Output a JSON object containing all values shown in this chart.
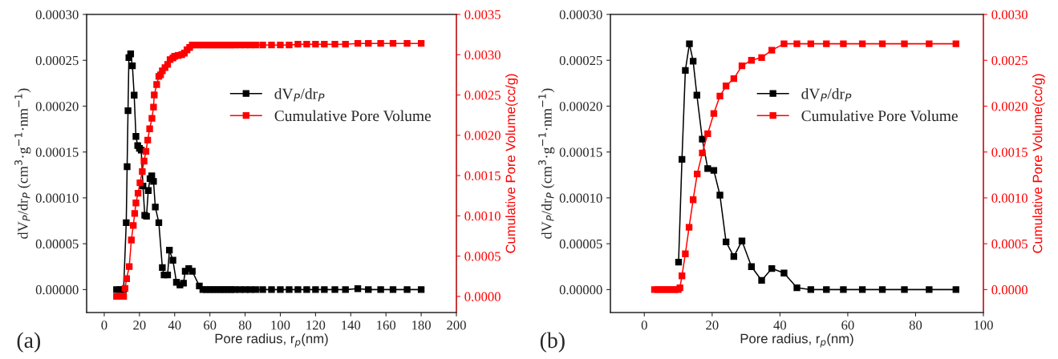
{
  "chart_data": [
    {
      "type": "line",
      "xlabel": "Pore radius, r$_{p}$(nm)",
      "ylabel": "dV$_{P}$/dr$_{P}$ (cm$^{3}$·g$^{−1}$·nm$^{−1}$)",
      "y2label": "Cumulative Pore Volume(cc/g)",
      "annotations": [
        "(a)"
      ],
      "marker": "square",
      "legend": "top right",
      "grid": false,
      "xlim": [
        -10,
        200
      ],
      "xticks": [
        0,
        20,
        40,
        60,
        80,
        100,
        120,
        140,
        160,
        180,
        200
      ],
      "ylim": [
        -2.5e-05,
        0.0003
      ],
      "yticks": [
        {
          "value": 0,
          "label": "0.00000"
        },
        {
          "value": 5e-05,
          "label": "0.00005"
        },
        {
          "value": 0.0001,
          "label": "0.00010"
        },
        {
          "value": 0.00015,
          "label": "0.00015"
        },
        {
          "value": 0.0002,
          "label": "0.00020"
        },
        {
          "value": 0.00025,
          "label": "0.00025"
        },
        {
          "value": 0.0003,
          "label": "0.00030"
        }
      ],
      "y2lim": [
        -0.0002,
        0.0035
      ],
      "y2ticks": [
        {
          "value": 0,
          "label": "0.0000"
        },
        {
          "value": 0.0005,
          "label": "0.0005"
        },
        {
          "value": 0.001,
          "label": "0.0010"
        },
        {
          "value": 0.0015,
          "label": "0.0015"
        },
        {
          "value": 0.002,
          "label": "0.0020"
        },
        {
          "value": 0.0025,
          "label": "0.0025"
        },
        {
          "value": 0.003,
          "label": "0.0030"
        },
        {
          "value": 0.0035,
          "label": "0.0035"
        }
      ],
      "series": [
        {
          "name": "dV$_{P}$/dr$_{P}$",
          "color": "#000000",
          "x": [
            7,
            9,
            11,
            12.5,
            13,
            13.5,
            14,
            15,
            16,
            17,
            18,
            19,
            20,
            21,
            22,
            23,
            24,
            25,
            26,
            27,
            28,
            29,
            31,
            33,
            34,
            36,
            37,
            39,
            41,
            43,
            45,
            46,
            48,
            50,
            54,
            56,
            58,
            60,
            62,
            64,
            66,
            68,
            70,
            72,
            74,
            77,
            80,
            83,
            86,
            90,
            95,
            100,
            105,
            110,
            115,
            120,
            125,
            131,
            137,
            144,
            150,
            157,
            164,
            172,
            180
          ],
          "values": [
            0,
            0,
            0,
            7.3e-05,
            0.000134,
            0.000195,
            0.000253,
            0.000257,
            0.000244,
            0.000212,
            0.000167,
            0.000157,
            0.000154,
            0.000152,
            0.000113,
            8.1e-05,
            8e-05,
            0.000108,
            0.000121,
            0.000124,
            0.000118,
            9e-05,
            7.3e-05,
            2.4e-05,
            1.6e-05,
            1.6e-05,
            4.3e-05,
            3.2e-05,
            8e-06,
            5e-06,
            7e-06,
            2e-05,
            2.3e-05,
            2e-05,
            4e-06,
            0,
            0,
            0,
            0,
            0,
            0,
            0,
            0,
            0,
            0,
            0,
            0,
            0,
            0,
            0,
            0,
            0,
            0,
            0,
            0,
            0,
            0,
            0,
            0,
            1e-06,
            0,
            0,
            0,
            0,
            0
          ]
        },
        {
          "name": "Cumulative Pore Volume",
          "color": "#ff0000",
          "axis": "y2",
          "x": [
            7,
            8,
            9,
            10,
            11,
            11.8,
            12.7,
            14.2,
            15.4,
            16.5,
            17.3,
            18,
            19.2,
            20.3,
            21.6,
            22.6,
            23.7,
            24.7,
            25.8,
            27.1,
            28,
            28.4,
            29.8,
            31,
            32,
            33,
            34.5,
            36,
            37.4,
            39,
            40,
            42,
            44,
            45.5,
            47,
            48.5,
            50,
            52,
            54,
            56,
            58,
            60,
            62,
            64,
            66,
            68,
            70,
            72,
            74,
            77,
            80,
            83,
            86,
            90,
            95,
            100,
            105,
            110,
            115,
            120,
            125,
            131,
            137,
            144,
            150,
            157,
            164,
            172,
            180
          ],
          "values": [
            0,
            0,
            0,
            0,
            0,
            0.0001,
            0.00022,
            0.00037,
            0.0007,
            0.00088,
            0.00103,
            0.00116,
            0.00128,
            0.00141,
            0.00155,
            0.00168,
            0.0018,
            0.00194,
            0.00208,
            0.00221,
            0.00235,
            0.0025,
            0.00263,
            0.00273,
            0.00275,
            0.0028,
            0.00284,
            0.00288,
            0.00294,
            0.00296,
            0.00298,
            0.00299,
            0.003,
            0.00302,
            0.00306,
            0.00309,
            0.00312,
            0.00312,
            0.00312,
            0.00312,
            0.00312,
            0.00312,
            0.00312,
            0.00312,
            0.00312,
            0.00312,
            0.00312,
            0.00312,
            0.00312,
            0.00312,
            0.00312,
            0.00312,
            0.00312,
            0.00312,
            0.00312,
            0.00312,
            0.00312,
            0.00313,
            0.00313,
            0.00313,
            0.00313,
            0.00313,
            0.00313,
            0.00314,
            0.00314,
            0.00314,
            0.00314,
            0.00314,
            0.00314
          ]
        }
      ]
    },
    {
      "type": "line",
      "xlabel": "Pore radius, r$_{p}$(nm)",
      "ylabel": "dV$_{P}$/dr$_{P}$ (cm$^{3}$·g$^{−1}$·nm$^{−1}$)",
      "y2label": "Cumulative Pore Volume(cc/g)",
      "annotations": [
        "(b)"
      ],
      "marker": "square",
      "legend": "top right",
      "grid": false,
      "xlim": [
        -10,
        100
      ],
      "xticks": [
        0,
        20,
        40,
        60,
        80,
        100
      ],
      "ylim": [
        -2.5e-05,
        0.0003
      ],
      "yticks": [
        {
          "value": 0,
          "label": "0.00000"
        },
        {
          "value": 5e-05,
          "label": "0.00005"
        },
        {
          "value": 0.0001,
          "label": "0.00010"
        },
        {
          "value": 0.00015,
          "label": "0.00015"
        },
        {
          "value": 0.0002,
          "label": "0.00020"
        },
        {
          "value": 0.00025,
          "label": "0.00025"
        },
        {
          "value": 0.0003,
          "label": "0.00030"
        }
      ],
      "y2lim": [
        -0.00025,
        0.003
      ],
      "y2ticks": [
        {
          "value": 0,
          "label": "0.0000"
        },
        {
          "value": 0.0005,
          "label": "0.0005"
        },
        {
          "value": 0.001,
          "label": "0.0010"
        },
        {
          "value": 0.0015,
          "label": "0.0015"
        },
        {
          "value": 0.002,
          "label": "0.0020"
        },
        {
          "value": 0.0025,
          "label": "0.0025"
        },
        {
          "value": 0.003,
          "label": "0.0030"
        }
      ],
      "series": [
        {
          "name": "dV$_{P}$/dr$_{P}$",
          "color": "#000000",
          "x": [
            10.1,
            11.1,
            12.1,
            13.3,
            14.4,
            15.5,
            17.1,
            18.7,
            20.5,
            22.3,
            24.1,
            26.4,
            28.8,
            31.6,
            34.6,
            37.6,
            41.2,
            45,
            49.1,
            53.7,
            58.7,
            64.3,
            70.2,
            76.7,
            84,
            91.9
          ],
          "values": [
            3e-05,
            0.000142,
            0.000239,
            0.000268,
            0.000249,
            0.000212,
            0.000164,
            0.000132,
            0.00013,
            0.000103,
            5.2e-05,
            3.6e-05,
            5.3e-05,
            2.5e-05,
            1e-05,
            2.3e-05,
            1.8e-05,
            2e-06,
            0,
            0,
            0,
            0,
            0,
            0,
            0,
            0
          ]
        },
        {
          "name": "Cumulative Pore Volume",
          "color": "#ff0000",
          "axis": "y2",
          "x": [
            3,
            4,
            5,
            6,
            7,
            8,
            9,
            10,
            10.5,
            11.1,
            12.1,
            13.2,
            14.4,
            15.6,
            17.1,
            18.7,
            20.5,
            22.3,
            24.1,
            26.4,
            28.8,
            31.6,
            34.6,
            37.6,
            41.2,
            45,
            49.1,
            53.7,
            58.7,
            64.3,
            70.2,
            76.7,
            84,
            91.9
          ],
          "values": [
            0,
            0,
            0,
            0,
            0,
            0,
            0,
            0,
            2e-05,
            0.00015,
            0.00039,
            0.00068,
            0.00098,
            0.00126,
            0.00149,
            0.0017,
            0.00192,
            0.00211,
            0.00222,
            0.0023,
            0.00244,
            0.0025,
            0.00253,
            0.00261,
            0.00268,
            0.00268,
            0.00268,
            0.00268,
            0.00268,
            0.00268,
            0.00268,
            0.00268,
            0.00268,
            0.00268
          ]
        }
      ]
    }
  ]
}
